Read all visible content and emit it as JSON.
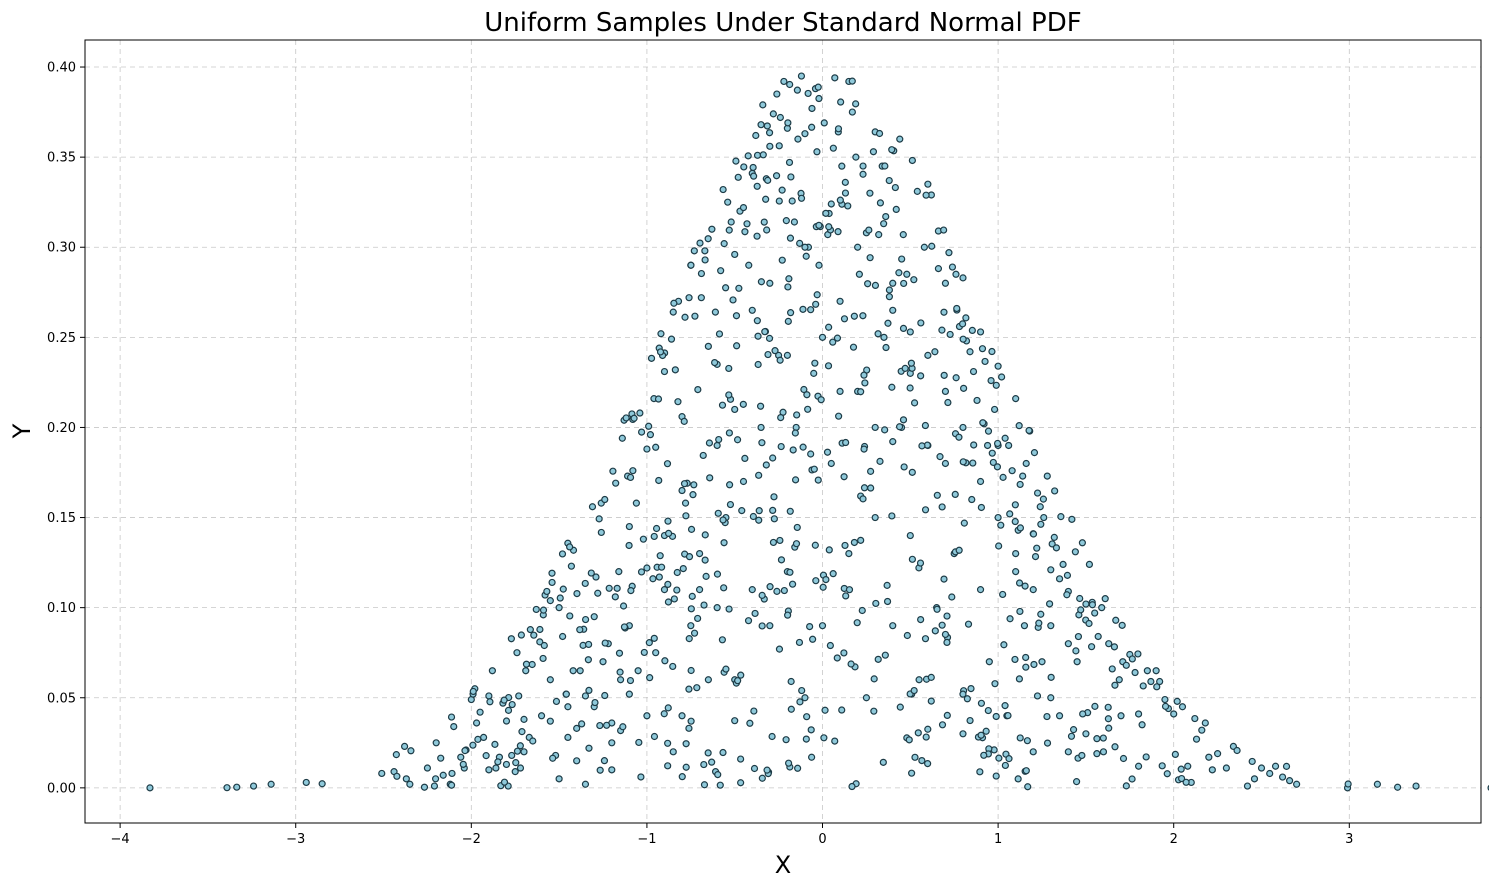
{
  "chart_data": {
    "type": "scatter",
    "title": "Uniform Samples Under Standard Normal PDF",
    "xlabel": "X",
    "ylabel": "Y",
    "xlim": [
      -4.2,
      3.75
    ],
    "ylim": [
      -0.0195,
      0.415
    ],
    "xticks": [
      -4,
      -3,
      -2,
      -1,
      0,
      1,
      2,
      3
    ],
    "xtick_labels": [
      "−4",
      "−3",
      "−2",
      "−1",
      "0",
      "1",
      "2",
      "3"
    ],
    "yticks": [
      0.0,
      0.05,
      0.1,
      0.15,
      0.2,
      0.25,
      0.3,
      0.35,
      0.4
    ],
    "ytick_labels": [
      "0.00",
      "0.05",
      "0.10",
      "0.15",
      "0.20",
      "0.25",
      "0.30",
      "0.35",
      "0.40"
    ],
    "grid": true,
    "legend": "none",
    "marker_color": "#8fc9da",
    "marker_edge_color": "#1d3b46",
    "n_points": 1000,
    "points": [
      [
        -3.83,
        0.0
      ],
      [
        -3.24,
        0.001
      ],
      [
        -3.14,
        0.002
      ],
      [
        -2.94,
        0.003
      ],
      [
        -2.51,
        0.008
      ],
      [
        -2.44,
        0.009
      ],
      [
        -2.38,
        0.023
      ],
      [
        -2.37,
        0.005
      ],
      [
        -2.35,
        0.002
      ],
      [
        -2.25,
        0.011
      ],
      [
        -2.21,
        0.001
      ],
      [
        -2.2,
        0.025
      ],
      [
        -2.16,
        0.007
      ],
      [
        -2.12,
        0.002
      ],
      [
        -2.11,
        0.008
      ],
      [
        -2.1,
        0.034
      ],
      [
        -2.06,
        0.017
      ],
      [
        -2.04,
        0.011
      ],
      [
        -2.03,
        0.021
      ],
      [
        -2.0,
        0.049
      ],
      [
        -1.99,
        0.052
      ],
      [
        -1.98,
        0.055
      ],
      [
        -1.97,
        0.036
      ],
      [
        -1.95,
        0.042
      ],
      [
        -1.93,
        0.028
      ],
      [
        -1.9,
        0.051
      ],
      [
        -1.88,
        0.065
      ],
      [
        -1.86,
        0.011
      ],
      [
        -1.84,
        0.017
      ],
      [
        -1.82,
        0.047
      ],
      [
        -1.8,
        0.013
      ],
      [
        -1.79,
        0.001
      ],
      [
        -1.77,
        0.018
      ],
      [
        -1.75,
        0.009
      ],
      [
        -1.74,
        0.075
      ],
      [
        -1.73,
        0.051
      ],
      [
        -1.72,
        0.011
      ],
      [
        -1.7,
        0.038
      ],
      [
        -1.69,
        0.065
      ],
      [
        -1.67,
        0.028
      ],
      [
        -1.65,
        0.026
      ],
      [
        -1.63,
        0.099
      ],
      [
        -1.61,
        0.081
      ],
      [
        -1.59,
        0.096
      ],
      [
        -1.58,
        0.107
      ],
      [
        -1.57,
        0.109
      ],
      [
        -1.55,
        0.037
      ],
      [
        -1.54,
        0.114
      ],
      [
        -1.52,
        0.018
      ],
      [
        -1.5,
        0.1
      ],
      [
        -1.48,
        0.084
      ],
      [
        -1.46,
        0.052
      ],
      [
        -1.45,
        0.028
      ],
      [
        -1.43,
        0.123
      ],
      [
        -1.42,
        0.065
      ],
      [
        -1.4,
        0.033
      ],
      [
        -1.38,
        0.065
      ],
      [
        -1.36,
        0.088
      ],
      [
        -1.35,
        0.051
      ],
      [
        -1.33,
        0.022
      ],
      [
        -1.31,
        0.156
      ],
      [
        -1.29,
        0.117
      ],
      [
        -1.28,
        0.108
      ],
      [
        -1.26,
        0.158
      ],
      [
        -1.24,
        0.16
      ],
      [
        -1.22,
        0.08
      ],
      [
        -1.2,
        0.036
      ],
      [
        -1.18,
        0.106
      ],
      [
        -1.16,
        0.12
      ],
      [
        -1.14,
        0.194
      ],
      [
        -1.13,
        0.204
      ],
      [
        -1.11,
        0.173
      ],
      [
        -1.1,
        0.052
      ],
      [
        -1.08,
        0.176
      ],
      [
        -1.06,
        0.158
      ],
      [
        -1.04,
        0.208
      ],
      [
        -1.02,
        0.138
      ],
      [
        -1.0,
        0.122
      ],
      [
        -0.98,
        0.196
      ],
      [
        -0.96,
        0.216
      ],
      [
        -0.95,
        0.189
      ],
      [
        -0.93,
        0.244
      ],
      [
        -0.92,
        0.252
      ],
      [
        -0.9,
        0.231
      ],
      [
        -0.88,
        0.148
      ],
      [
        -0.86,
        0.249
      ],
      [
        -0.85,
        0.264
      ],
      [
        -0.82,
        0.27
      ],
      [
        -0.8,
        0.206
      ],
      [
        -0.78,
        0.158
      ],
      [
        -0.76,
        0.272
      ],
      [
        -0.75,
        0.29
      ],
      [
        -0.73,
        0.298
      ],
      [
        -0.71,
        0.221
      ],
      [
        -0.69,
        0.272
      ],
      [
        -0.67,
        0.298
      ],
      [
        -0.65,
        0.245
      ],
      [
        -0.63,
        0.31
      ],
      [
        -0.61,
        0.264
      ],
      [
        -0.6,
        0.235
      ],
      [
        -0.58,
        0.287
      ],
      [
        -0.56,
        0.302
      ],
      [
        -0.54,
        0.325
      ],
      [
        -0.52,
        0.314
      ],
      [
        -0.5,
        0.296
      ],
      [
        -0.49,
        0.262
      ],
      [
        -0.47,
        0.32
      ],
      [
        -0.45,
        0.322
      ],
      [
        -0.43,
        0.313
      ],
      [
        -0.42,
        0.29
      ],
      [
        -0.4,
        0.341
      ],
      [
        -0.38,
        0.362
      ],
      [
        -0.37,
        0.351
      ],
      [
        -0.35,
        0.368
      ],
      [
        -0.34,
        0.379
      ],
      [
        -0.32,
        0.338
      ],
      [
        -0.3,
        0.356
      ],
      [
        -0.28,
        0.374
      ],
      [
        -0.26,
        0.385
      ],
      [
        -0.24,
        0.372
      ],
      [
        -0.22,
        0.392
      ],
      [
        -0.2,
        0.366
      ],
      [
        -0.18,
        0.339
      ],
      [
        -0.16,
        0.314
      ],
      [
        -0.14,
        0.36
      ],
      [
        -0.12,
        0.395
      ],
      [
        -0.1,
        0.363
      ],
      [
        -0.08,
        0.3
      ],
      [
        -0.06,
        0.377
      ],
      [
        -0.04,
        0.388
      ],
      [
        -0.02,
        0.29
      ],
      [
        0.01,
        0.369
      ],
      [
        0.03,
        0.307
      ],
      [
        0.05,
        0.324
      ],
      [
        0.07,
        0.394
      ],
      [
        0.09,
        0.364
      ],
      [
        0.11,
        0.345
      ],
      [
        0.13,
        0.336
      ],
      [
        0.15,
        0.392
      ],
      [
        0.17,
        0.375
      ],
      [
        0.19,
        0.35
      ],
      [
        0.21,
        0.285
      ],
      [
        0.23,
        0.262
      ],
      [
        0.25,
        0.308
      ],
      [
        0.27,
        0.33
      ],
      [
        0.29,
        0.353
      ],
      [
        0.3,
        0.364
      ],
      [
        0.32,
        0.307
      ],
      [
        0.34,
        0.345
      ],
      [
        0.36,
        0.317
      ],
      [
        0.38,
        0.337
      ],
      [
        0.4,
        0.265
      ],
      [
        0.42,
        0.321
      ],
      [
        0.44,
        0.36
      ],
      [
        0.46,
        0.307
      ],
      [
        0.48,
        0.285
      ],
      [
        0.5,
        0.253
      ],
      [
        0.52,
        0.282
      ],
      [
        0.54,
        0.331
      ],
      [
        0.56,
        0.258
      ],
      [
        0.58,
        0.3
      ],
      [
        0.6,
        0.335
      ],
      [
        0.62,
        0.329
      ],
      [
        0.64,
        0.242
      ],
      [
        0.66,
        0.309
      ],
      [
        0.68,
        0.254
      ],
      [
        0.7,
        0.28
      ],
      [
        0.72,
        0.297
      ],
      [
        0.74,
        0.289
      ],
      [
        0.76,
        0.285
      ],
      [
        0.78,
        0.256
      ],
      [
        0.8,
        0.283
      ],
      [
        0.82,
        0.248
      ],
      [
        0.84,
        0.242
      ],
      [
        0.86,
        0.231
      ],
      [
        0.88,
        0.215
      ],
      [
        0.9,
        0.253
      ],
      [
        0.92,
        0.202
      ],
      [
        0.94,
        0.19
      ],
      [
        0.96,
        0.226
      ],
      [
        0.98,
        0.21
      ],
      [
        1.0,
        0.234
      ],
      [
        1.02,
        0.228
      ],
      [
        1.04,
        0.194
      ],
      [
        1.06,
        0.19
      ],
      [
        1.08,
        0.176
      ],
      [
        1.1,
        0.216
      ],
      [
        1.12,
        0.201
      ],
      [
        1.14,
        0.173
      ],
      [
        1.16,
        0.18
      ],
      [
        1.18,
        0.198
      ],
      [
        1.2,
        0.141
      ],
      [
        1.22,
        0.133
      ],
      [
        1.24,
        0.156
      ],
      [
        1.26,
        0.15
      ],
      [
        1.28,
        0.173
      ],
      [
        1.3,
        0.121
      ],
      [
        1.32,
        0.139
      ],
      [
        1.35,
        0.116
      ],
      [
        1.37,
        0.124
      ],
      [
        1.4,
        0.109
      ],
      [
        1.42,
        0.149
      ],
      [
        1.44,
        0.131
      ],
      [
        1.46,
        0.096
      ],
      [
        1.48,
        0.136
      ],
      [
        1.5,
        0.102
      ],
      [
        1.52,
        0.124
      ],
      [
        1.55,
        0.097
      ],
      [
        1.57,
        0.084
      ],
      [
        1.59,
        0.1
      ],
      [
        1.61,
        0.105
      ],
      [
        1.63,
        0.08
      ],
      [
        1.65,
        0.066
      ],
      [
        1.67,
        0.093
      ],
      [
        1.69,
        0.06
      ],
      [
        1.71,
        0.07
      ],
      [
        1.73,
        0.068
      ],
      [
        1.75,
        0.074
      ],
      [
        1.78,
        0.064
      ],
      [
        1.8,
        0.041
      ],
      [
        1.82,
        0.035
      ],
      [
        1.85,
        0.065
      ],
      [
        1.87,
        0.059
      ],
      [
        1.9,
        0.065
      ],
      [
        1.92,
        0.059
      ],
      [
        1.95,
        0.049
      ],
      [
        1.97,
        0.044
      ],
      [
        2.0,
        0.041
      ],
      [
        2.02,
        0.048
      ],
      [
        2.05,
        0.045
      ],
      [
        2.08,
        0.012
      ],
      [
        2.1,
        0.003
      ],
      [
        2.13,
        0.027
      ],
      [
        2.16,
        0.032
      ],
      [
        2.18,
        0.036
      ],
      [
        2.2,
        0.017
      ],
      [
        2.22,
        0.01
      ],
      [
        2.25,
        0.019
      ],
      [
        2.3,
        0.011
      ],
      [
        2.34,
        0.023
      ],
      [
        2.42,
        0.001
      ],
      [
        2.46,
        0.005
      ],
      [
        2.5,
        0.011
      ],
      [
        2.58,
        0.012
      ],
      [
        2.62,
        0.006
      ],
      [
        2.66,
        0.004
      ],
      [
        2.7,
        0.002
      ],
      [
        2.99,
        0.0
      ],
      [
        3.16,
        0.002
      ],
      [
        3.38,
        0.001
      ],
      [
        -1.9,
        0.01
      ],
      [
        -1.7,
        0.02
      ],
      [
        -1.6,
        0.04
      ],
      [
        -1.55,
        0.06
      ],
      [
        -1.5,
        0.005
      ],
      [
        -1.45,
        0.045
      ],
      [
        -1.4,
        0.015
      ],
      [
        -1.35,
        0.002
      ],
      [
        -1.3,
        0.095
      ],
      [
        -1.25,
        0.07
      ],
      [
        -1.2,
        0.01
      ],
      [
        -1.15,
        0.06
      ],
      [
        -1.1,
        0.09
      ],
      [
        -1.05,
        0.065
      ],
      [
        -1.0,
        0.04
      ],
      [
        -0.95,
        0.075
      ],
      [
        -0.9,
        0.11
      ],
      [
        -0.85,
        0.02
      ],
      [
        -0.8,
        0.04
      ],
      [
        -0.75,
        0.09
      ],
      [
        -0.7,
        0.13
      ],
      [
        -0.65,
        0.06
      ],
      [
        -0.6,
        0.1
      ],
      [
        -0.55,
        0.15
      ],
      [
        -0.5,
        0.06
      ],
      [
        -0.45,
        0.17
      ],
      [
        -0.4,
        0.11
      ],
      [
        -0.35,
        0.2
      ],
      [
        -0.3,
        0.09
      ],
      [
        -0.25,
        0.24
      ],
      [
        -0.2,
        0.12
      ],
      [
        -0.15,
        0.2
      ],
      [
        -0.1,
        0.05
      ],
      [
        -0.05,
        0.23
      ],
      [
        0.0,
        0.09
      ],
      [
        0.05,
        0.18
      ],
      [
        0.1,
        0.27
      ],
      [
        0.15,
        0.13
      ],
      [
        0.2,
        0.22
      ],
      [
        0.25,
        0.05
      ],
      [
        0.3,
        0.15
      ],
      [
        0.35,
        0.25
      ],
      [
        0.4,
        0.09
      ],
      [
        0.45,
        0.2
      ],
      [
        0.5,
        0.14
      ],
      [
        0.55,
        0.06
      ],
      [
        0.6,
        0.19
      ],
      [
        0.65,
        0.1
      ],
      [
        0.7,
        0.22
      ],
      [
        0.75,
        0.13
      ],
      [
        0.8,
        0.03
      ],
      [
        0.85,
        0.16
      ],
      [
        0.9,
        0.11
      ],
      [
        0.95,
        0.07
      ],
      [
        1.0,
        0.15
      ],
      [
        1.05,
        0.04
      ],
      [
        1.1,
        0.13
      ],
      [
        1.15,
        0.09
      ],
      [
        1.2,
        0.02
      ],
      [
        1.25,
        0.07
      ],
      [
        1.3,
        0.05
      ],
      [
        1.35,
        0.04
      ],
      [
        1.4,
        0.02
      ],
      [
        1.45,
        0.07
      ],
      [
        1.5,
        0.03
      ],
      [
        1.6,
        0.02
      ],
      [
        1.7,
        0.04
      ],
      [
        1.8,
        0.012
      ],
      [
        -1.3,
        0.045
      ],
      [
        -1.2,
        0.025
      ],
      [
        -1.1,
        0.145
      ],
      [
        -1.0,
        0.188
      ],
      [
        -0.9,
        0.14
      ],
      [
        -0.8,
        0.165
      ],
      [
        -0.7,
        0.11
      ],
      [
        -0.6,
        0.19
      ],
      [
        -0.5,
        0.21
      ],
      [
        -0.4,
        0.265
      ],
      [
        -0.3,
        0.28
      ],
      [
        -0.2,
        0.24
      ],
      [
        -0.1,
        0.3
      ],
      [
        0.0,
        0.25
      ],
      [
        0.1,
        0.22
      ],
      [
        0.2,
        0.3
      ],
      [
        0.3,
        0.2
      ],
      [
        0.4,
        0.28
      ],
      [
        0.5,
        0.23
      ],
      [
        0.6,
        0.24
      ],
      [
        0.7,
        0.18
      ],
      [
        0.8,
        0.2
      ],
      [
        0.9,
        0.17
      ],
      [
        1.0,
        0.19
      ],
      [
        1.1,
        0.12
      ],
      [
        1.2,
        0.11
      ],
      [
        1.3,
        0.09
      ],
      [
        1.4,
        0.08
      ]
    ]
  }
}
